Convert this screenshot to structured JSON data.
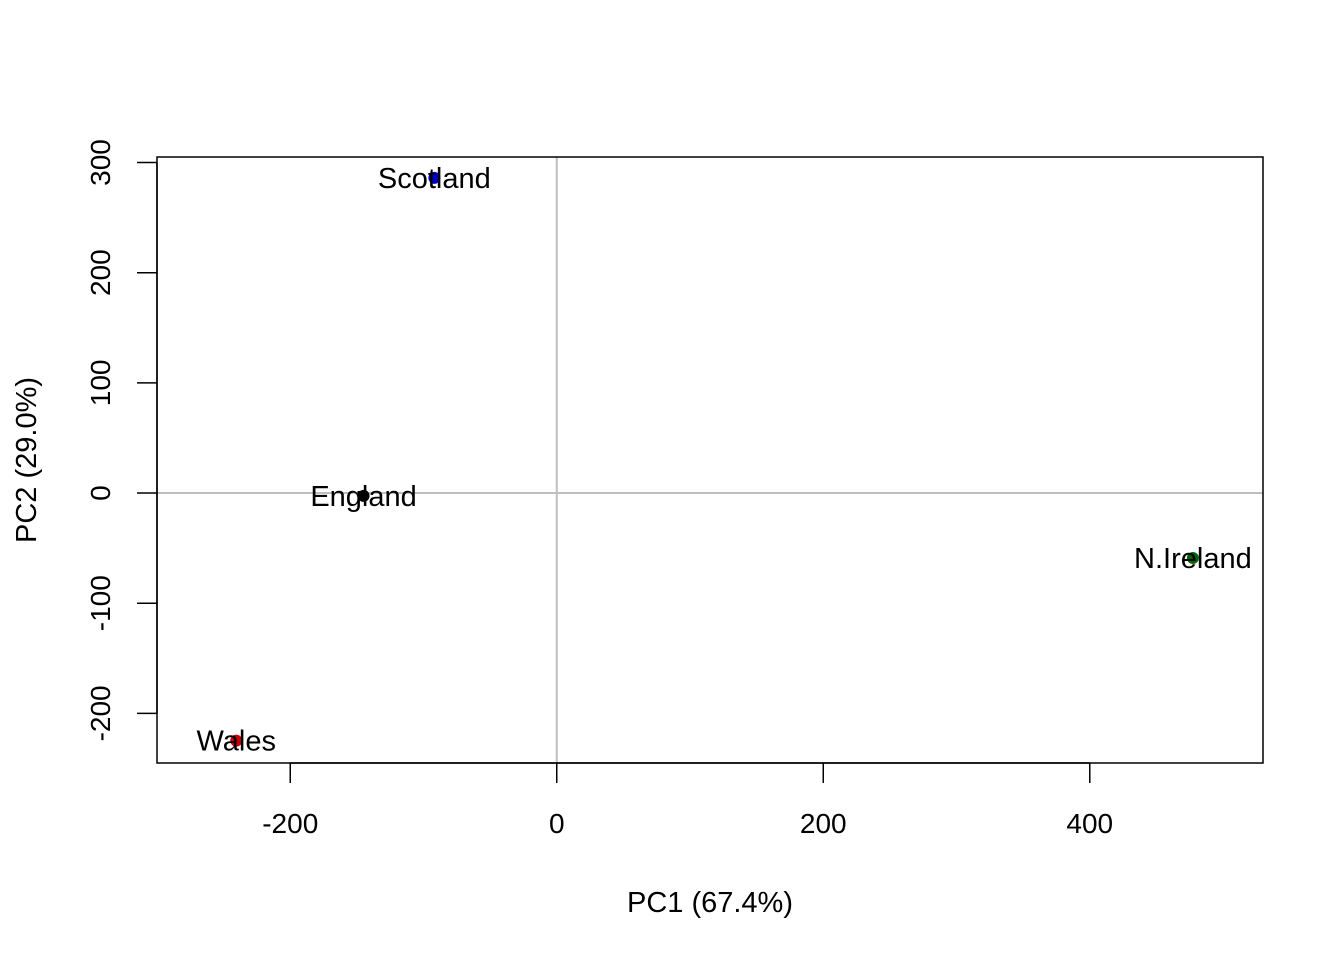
{
  "chart_data": {
    "type": "scatter",
    "xlabel": "PC1 (67.4%)",
    "ylabel": "PC2 (29.0%)",
    "xlim": [
      -300,
      530
    ],
    "ylim": [
      -245,
      305
    ],
    "xticks": [
      -200,
      0,
      200,
      400
    ],
    "yticks": [
      -200,
      -100,
      0,
      100,
      200,
      300
    ],
    "reference_lines": {
      "x": 0,
      "y": 0,
      "color": "#bebebe"
    },
    "grid": false,
    "points": [
      {
        "label": "England",
        "x": -144.99,
        "y": -2.53,
        "color": "#000000"
      },
      {
        "label": "Wales",
        "x": -240.53,
        "y": -224.65,
        "color": "#cc0000"
      },
      {
        "label": "Scotland",
        "x": -91.87,
        "y": 286.08,
        "color": "#0000cc"
      },
      {
        "label": "N.Ireland",
        "x": 477.39,
        "y": -58.9,
        "color": "#006400"
      }
    ]
  }
}
